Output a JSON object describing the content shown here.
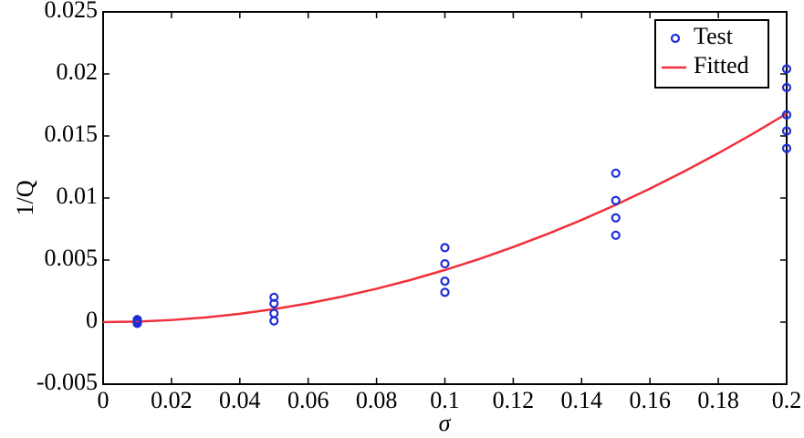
{
  "chart_data": {
    "type": "scatter",
    "x_label": "σ",
    "y_label": "1/Q",
    "xlim": [
      0,
      0.2
    ],
    "xticks": [
      0,
      0.02,
      0.04,
      0.06,
      0.08,
      0.1,
      0.12,
      0.14,
      0.16,
      0.18,
      0.2
    ],
    "ylim": [
      -0.005,
      0.025
    ],
    "yticks": [
      -0.005,
      0,
      0.005,
      0.01,
      0.015,
      0.02,
      0.025
    ],
    "legend": "upper-right",
    "series": [
      {
        "name": "Test",
        "type": "scatter",
        "color": "#1f2fd6",
        "x": [
          0.01,
          0.01,
          0.01,
          0.01,
          0.05,
          0.05,
          0.05,
          0.05,
          0.1,
          0.1,
          0.1,
          0.1,
          0.15,
          0.15,
          0.15,
          0.15,
          0.2,
          0.2,
          0.2,
          0.2,
          0.2
        ],
        "values": [
          0.0002,
          0.0001,
          0,
          -0.0001,
          0.002,
          0.0015,
          0.0007,
          0.0001,
          0.006,
          0.0047,
          0.0033,
          0.0024,
          0.012,
          0.0098,
          0.0084,
          0.007,
          0.0204,
          0.0189,
          0.0167,
          0.0154,
          0.014
        ]
      },
      {
        "name": "Fitted",
        "type": "line",
        "color": "#f0303a",
        "x": [
          0,
          0.01,
          0.02,
          0.03,
          0.04,
          0.05,
          0.06,
          0.07,
          0.08,
          0.09,
          0.1,
          0.11,
          0.12,
          0.13,
          0.14,
          0.15,
          0.16,
          0.17,
          0.18,
          0.19,
          0.2
        ],
        "values": [
          0,
          4e-05,
          0.00017,
          0.00038,
          0.00067,
          0.00105,
          0.00151,
          0.00206,
          0.00269,
          0.0034,
          0.0042,
          0.00508,
          0.00605,
          0.0071,
          0.00823,
          0.00945,
          0.01075,
          0.01214,
          0.01361,
          0.01516,
          0.0168
        ]
      }
    ]
  }
}
